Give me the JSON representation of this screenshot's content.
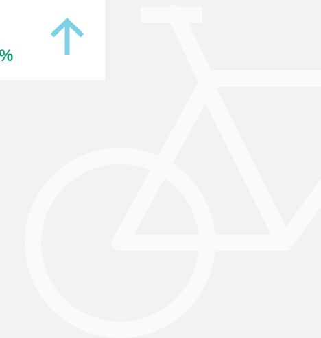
{
  "stat": {
    "suffix": "%"
  }
}
